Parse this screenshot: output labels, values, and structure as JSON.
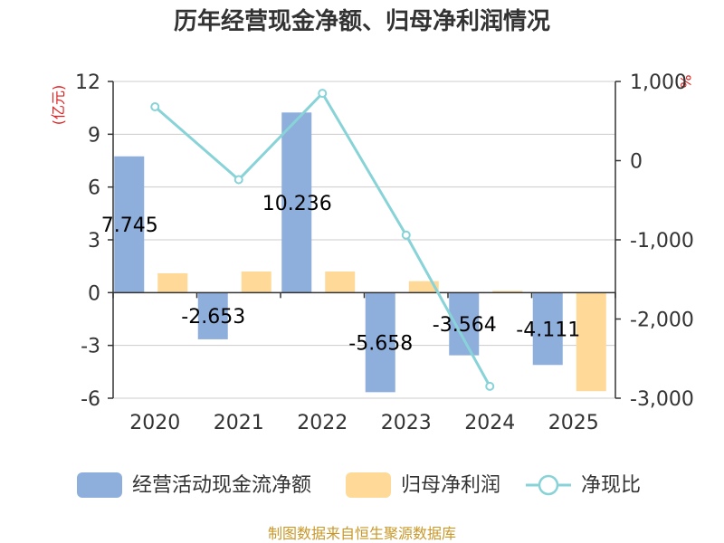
{
  "chart_data": {
    "type": "bar+line",
    "title": "历年经营现金净额、归母净利润情况",
    "categories": [
      "2020",
      "2021",
      "2022",
      "2023",
      "2024",
      "2025"
    ],
    "y_left": {
      "unit": "(亿元)",
      "ylim": [
        -6,
        12
      ],
      "ticks": [
        12,
        9,
        6,
        3,
        0,
        -3,
        -6
      ],
      "tick_labels": [
        "12",
        "9",
        "6",
        "3",
        "0",
        "-3",
        "-6"
      ]
    },
    "y_right": {
      "unit": "%",
      "ylim": [
        -3000,
        1000
      ],
      "ticks": [
        1000,
        0,
        -1000,
        -2000,
        -3000
      ],
      "tick_labels": [
        "1,000",
        "0",
        "-1,000",
        "-2,000",
        "-3,000"
      ]
    },
    "series": [
      {
        "name": "经营活动现金流净额",
        "type": "bar",
        "axis": "left",
        "values": [
          7.745,
          -2.653,
          10.236,
          -5.658,
          -3.564,
          -4.111
        ],
        "data_labels": [
          "7.745",
          "-2.653",
          "10.236",
          "-5.658",
          "-3.564",
          "-4.111"
        ]
      },
      {
        "name": "归母净利润",
        "type": "bar",
        "axis": "left",
        "values": [
          1.1,
          1.2,
          1.2,
          0.65,
          0.1,
          -5.6
        ]
      },
      {
        "name": "净现比",
        "type": "line",
        "axis": "right",
        "values": [
          680,
          -240,
          850,
          -940,
          -2850,
          null
        ]
      }
    ],
    "colors": {
      "cash": "#8eaedb",
      "profit": "#ffd997",
      "ratio": "#88d3d8",
      "unit": "#e02020",
      "source": "#c8982a",
      "grid": "#cccccc",
      "axis": "#333333"
    }
  },
  "source": "制图数据来自恒生聚源数据库"
}
